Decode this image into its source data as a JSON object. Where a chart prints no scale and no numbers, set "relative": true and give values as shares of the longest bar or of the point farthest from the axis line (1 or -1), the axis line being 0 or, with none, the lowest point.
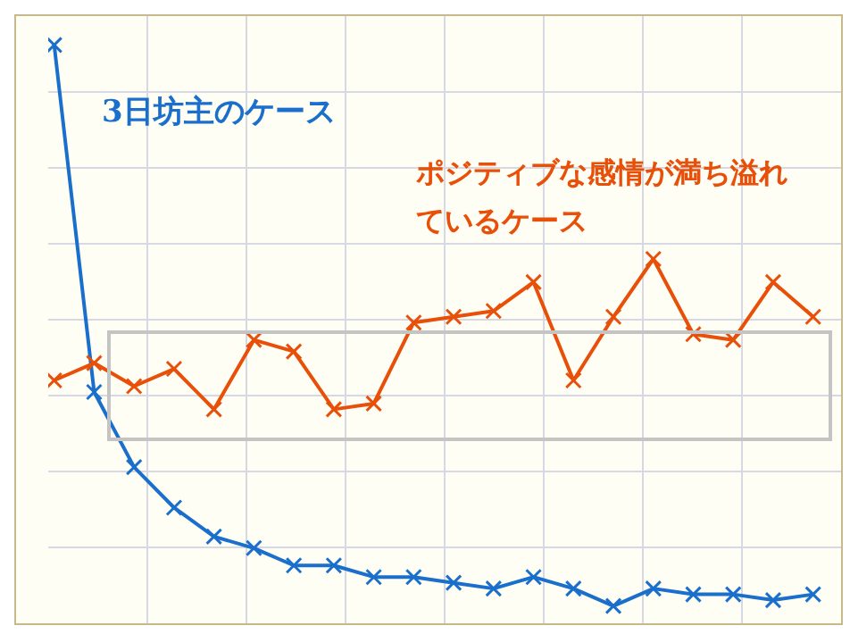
{
  "chart_data": {
    "type": "line",
    "relative": true,
    "grid": true,
    "legend": false,
    "marker": "cross",
    "line_style": "solid",
    "categories": [
      null,
      null,
      null,
      null,
      null,
      null,
      null,
      null,
      null,
      null,
      null,
      null,
      null,
      null,
      null,
      null,
      null,
      null,
      null,
      null
    ],
    "series": [
      {
        "name": "3日坊主のケース",
        "color": "#1a6fcc",
        "values": [
          1,
          0.4,
          0.27,
          0.2,
          0.15,
          0.13,
          0.1,
          0.1,
          0.08,
          0.08,
          0.07,
          0.06,
          0.08,
          0.06,
          0.03,
          0.06,
          0.05,
          0.05,
          0.04,
          0.05
        ]
      },
      {
        "name": "ポジティブな感情が満ち溢れているケース",
        "color": "#e8500a",
        "values": [
          0.42,
          0.45,
          0.41,
          0.44,
          0.37,
          0.49,
          0.47,
          0.37,
          0.38,
          0.52,
          0.53,
          0.54,
          0.59,
          0.42,
          0.53,
          0.63,
          0.5,
          0.49,
          0.59,
          0.53
        ]
      }
    ]
  }
}
